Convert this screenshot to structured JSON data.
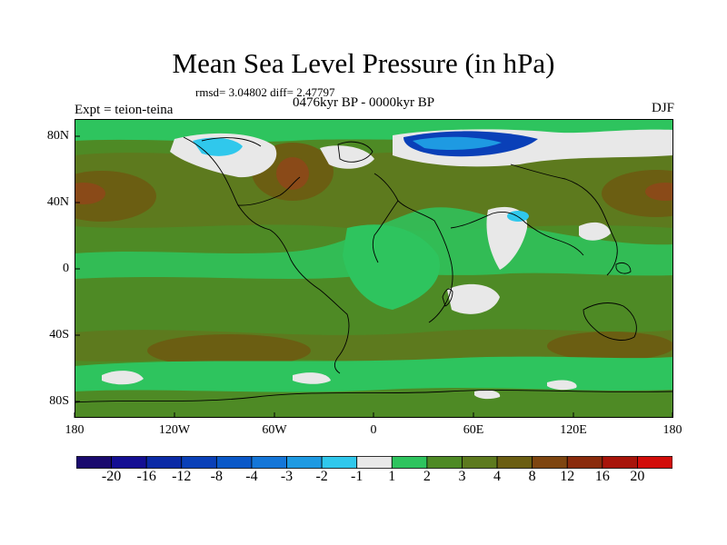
{
  "title": "Mean Sea Level Pressure (in hPa)",
  "stats": "rmsd= 3.04802 diff= 2.47797",
  "experiment": "Expt = teion-teina",
  "period": "0476kyr BP - 0000kyr BP",
  "season": "DJF",
  "lat_labels": [
    "80N",
    "40N",
    "0",
    "40S",
    "80S"
  ],
  "lon_labels": [
    "180",
    "120W",
    "60W",
    "0",
    "60E",
    "120E",
    "180"
  ],
  "colorbar": {
    "colors": [
      "#1a0a6e",
      "#140f93",
      "#0b2aa6",
      "#0a40b8",
      "#0a58c8",
      "#1476d8",
      "#1e9ae2",
      "#30c8ec",
      "#e8e8e8",
      "#2ec45e",
      "#4e8a25",
      "#5d7a1e",
      "#6b5e12",
      "#7e4510",
      "#8a2b0c",
      "#a8140a",
      "#d20d0a"
    ],
    "labels": [
      "-20",
      "-16",
      "-12",
      "-8",
      "-4",
      "-3",
      "-2",
      "-1",
      "1",
      "2",
      "3",
      "4",
      "8",
      "12",
      "16",
      "20"
    ]
  },
  "colors": {
    "base": "#4e8a25",
    "light_green": "#2ec45e",
    "mid": "#5d7a1e",
    "brown": "#6b5e12",
    "rust": "#8a4a18",
    "white": "#e8e8e8",
    "dark_blue": "#0a40b8",
    "cyan": "#30c8ec"
  }
}
